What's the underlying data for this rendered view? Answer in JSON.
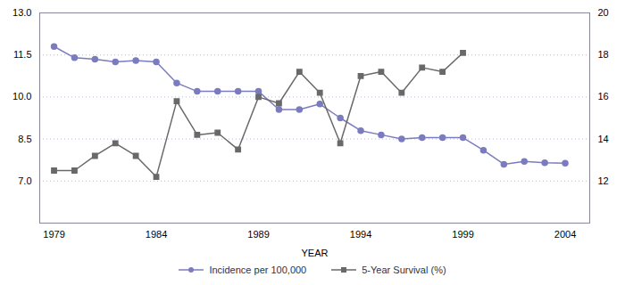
{
  "chart_data": {
    "type": "line",
    "xlabel": "YEAR",
    "x": [
      1979,
      1980,
      1981,
      1982,
      1983,
      1984,
      1985,
      1986,
      1987,
      1988,
      1989,
      1990,
      1991,
      1992,
      1993,
      1994,
      1995,
      1996,
      1997,
      1998,
      1999,
      2000,
      2001,
      2002,
      2003,
      2004
    ],
    "series": [
      {
        "name": "Incidence per 100,000",
        "color": "#7b7bbf",
        "marker": "circle",
        "values": [
          11.8,
          11.4,
          11.35,
          11.25,
          11.3,
          11.25,
          10.5,
          10.2,
          10.2,
          10.2,
          10.2,
          9.55,
          9.55,
          9.75,
          9.25,
          8.8,
          8.65,
          8.5,
          8.55,
          8.55,
          8.55,
          8.1,
          7.6,
          7.7,
          7.65,
          7.64
        ]
      },
      {
        "name": "5-Year Survival (%)",
        "color": "#696969",
        "marker": "square",
        "axis": "y2",
        "values": [
          12.5,
          12.5,
          13.2,
          13.8,
          13.2,
          12.2,
          15.8,
          14.2,
          14.3,
          13.5,
          16.0,
          15.7,
          17.2,
          16.2,
          13.8,
          17.0,
          17.2,
          16.2,
          17.4,
          17.2,
          18.1,
          null,
          null,
          null,
          null,
          null
        ]
      }
    ],
    "xlim": [
      1978.3,
      2005.2
    ],
    "xticks": [
      1979,
      1984,
      1989,
      1994,
      1999,
      2004
    ],
    "ylim": [
      5.5,
      13.0
    ],
    "yticks": [
      {
        "value": 7.0,
        "label": "7.0"
      },
      {
        "value": 8.5,
        "label": "8.5"
      },
      {
        "value": 10.0,
        "label": "10.0"
      },
      {
        "value": 11.5,
        "label": "11.5"
      },
      {
        "value": 13.0,
        "label": "13.0"
      }
    ],
    "y2lim": [
      10.0,
      20.0
    ],
    "y2ticks": [
      12,
      14,
      16,
      18,
      20
    ],
    "grid": true,
    "legend": "bottom"
  }
}
